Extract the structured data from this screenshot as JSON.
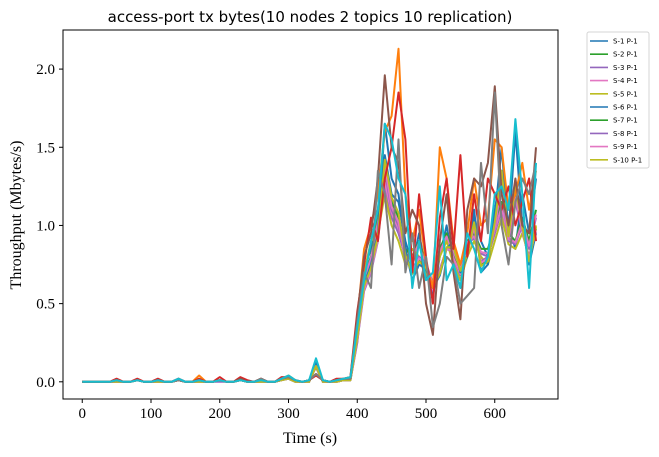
{
  "chart_data": {
    "type": "line",
    "title": "access-port tx bytes(10 nodes 2 topics 10 replication)",
    "xlabel": "Time (s)",
    "ylabel": "Throughput (Mbytes/s)",
    "xlim": [
      -28,
      692
    ],
    "ylim": [
      -0.11,
      2.25
    ],
    "xticks": [
      0,
      100,
      200,
      300,
      400,
      500,
      600
    ],
    "yticks": [
      0.0,
      0.5,
      1.0,
      1.5,
      2.0
    ],
    "ytick_labels": [
      "0.0",
      "0.5",
      "1.0",
      "1.5",
      "2.0"
    ],
    "grid": false,
    "legend_position": "outside-top-right",
    "x": [
      0,
      10,
      20,
      30,
      40,
      50,
      60,
      70,
      80,
      90,
      100,
      110,
      120,
      130,
      140,
      150,
      160,
      170,
      180,
      190,
      200,
      210,
      220,
      230,
      240,
      250,
      260,
      270,
      280,
      290,
      300,
      310,
      320,
      330,
      340,
      350,
      360,
      370,
      380,
      390,
      400,
      410,
      420,
      430,
      440,
      450,
      460,
      470,
      480,
      490,
      500,
      510,
      520,
      530,
      540,
      550,
      560,
      570,
      580,
      590,
      600,
      610,
      620,
      630,
      640,
      650,
      660
    ],
    "series": [
      {
        "name": "S-1 P-1",
        "color": "#1f77b4",
        "values": [
          0.0,
          0.0,
          0.0,
          0.0,
          0.0,
          0.01,
          0.0,
          0.0,
          0.01,
          0.0,
          0.0,
          0.01,
          0.0,
          0.0,
          0.02,
          0.0,
          0.0,
          0.01,
          0.0,
          0.0,
          0.01,
          0.0,
          0.0,
          0.02,
          0.0,
          0.0,
          0.01,
          0.0,
          0.0,
          0.02,
          0.03,
          0.01,
          0.0,
          0.01,
          0.12,
          0.01,
          0.0,
          0.01,
          0.01,
          0.02,
          0.3,
          0.72,
          0.85,
          1.1,
          1.45,
          1.2,
          1.15,
          0.9,
          0.75,
          0.95,
          0.7,
          0.55,
          0.8,
          1.0,
          0.75,
          0.6,
          0.85,
          1.05,
          0.9,
          0.8,
          1.1,
          1.35,
          1.0,
          0.85,
          1.2,
          0.95,
          1.3
        ]
      },
      {
        "name": "S-2 P-1",
        "color": "#2ca02c",
        "values": [
          0.0,
          0.0,
          0.0,
          0.0,
          0.0,
          0.0,
          0.0,
          0.0,
          0.01,
          0.0,
          0.0,
          0.0,
          0.0,
          0.0,
          0.01,
          0.0,
          0.0,
          0.0,
          0.0,
          0.0,
          0.01,
          0.0,
          0.0,
          0.01,
          0.0,
          0.0,
          0.0,
          0.0,
          0.0,
          0.01,
          0.02,
          0.0,
          0.0,
          0.0,
          0.1,
          0.0,
          0.0,
          0.0,
          0.01,
          0.01,
          0.28,
          0.68,
          0.8,
          1.05,
          1.3,
          1.1,
          1.0,
          0.85,
          0.8,
          0.9,
          0.75,
          0.6,
          0.85,
          0.95,
          0.8,
          0.7,
          0.9,
          0.95,
          0.85,
          0.85,
          1.0,
          1.15,
          0.95,
          0.9,
          1.05,
          0.9,
          1.1
        ]
      },
      {
        "name": "S-3 P-1",
        "color": "#9467bd",
        "values": [
          0.0,
          0.0,
          0.0,
          0.0,
          0.0,
          0.0,
          0.0,
          0.0,
          0.01,
          0.0,
          0.0,
          0.0,
          0.0,
          0.0,
          0.01,
          0.0,
          0.0,
          0.01,
          0.0,
          0.0,
          0.0,
          0.0,
          0.0,
          0.01,
          0.0,
          0.0,
          0.01,
          0.0,
          0.0,
          0.01,
          0.02,
          0.0,
          0.0,
          0.01,
          0.09,
          0.0,
          0.0,
          0.0,
          0.01,
          0.01,
          0.25,
          0.65,
          0.78,
          1.0,
          1.25,
          1.05,
          0.95,
          0.8,
          0.78,
          0.88,
          0.72,
          0.58,
          0.82,
          0.92,
          0.78,
          0.68,
          0.88,
          0.92,
          0.82,
          0.8,
          0.95,
          1.1,
          0.9,
          0.88,
          1.0,
          0.85,
          1.05
        ]
      },
      {
        "name": "S-4 P-1",
        "color": "#e377c2",
        "values": [
          0.0,
          0.0,
          0.0,
          0.0,
          0.0,
          0.0,
          0.0,
          0.0,
          0.01,
          0.0,
          0.0,
          0.0,
          0.0,
          0.0,
          0.01,
          0.0,
          0.0,
          0.0,
          0.0,
          0.0,
          0.01,
          0.0,
          0.0,
          0.01,
          0.0,
          0.0,
          0.0,
          0.0,
          0.0,
          0.01,
          0.02,
          0.0,
          0.0,
          0.0,
          0.1,
          0.0,
          0.0,
          0.0,
          0.01,
          0.01,
          0.27,
          0.66,
          0.79,
          1.02,
          1.28,
          1.08,
          0.98,
          0.82,
          0.79,
          0.89,
          0.73,
          0.59,
          0.83,
          0.93,
          0.79,
          0.69,
          0.89,
          0.93,
          0.83,
          0.82,
          0.97,
          1.12,
          0.92,
          0.89,
          1.02,
          0.87,
          1.07
        ]
      },
      {
        "name": "S-5 P-1",
        "color": "#bcbd22",
        "values": [
          0.0,
          0.0,
          0.0,
          0.0,
          0.0,
          0.0,
          0.0,
          0.0,
          0.01,
          0.0,
          0.0,
          0.0,
          0.0,
          0.0,
          0.01,
          0.0,
          0.0,
          0.0,
          0.0,
          0.0,
          0.01,
          0.0,
          0.0,
          0.01,
          0.0,
          0.0,
          0.0,
          0.0,
          0.0,
          0.01,
          0.02,
          0.0,
          0.0,
          0.0,
          0.1,
          0.0,
          0.0,
          0.0,
          0.01,
          0.01,
          0.28,
          0.7,
          0.9,
          0.95,
          1.2,
          1.0,
          0.9,
          0.75,
          0.85,
          0.8,
          0.7,
          0.6,
          0.8,
          0.9,
          0.75,
          0.65,
          0.8,
          0.9,
          0.8,
          0.75,
          0.9,
          1.05,
          0.88,
          0.85,
          0.95,
          0.8,
          1.0
        ]
      },
      {
        "name": "S-6 P-1",
        "color": "#1f77b4",
        "values": [
          0.0,
          0.0,
          0.0,
          0.0,
          0.0,
          0.01,
          0.0,
          0.0,
          0.01,
          0.0,
          0.0,
          0.01,
          0.0,
          0.0,
          0.01,
          0.0,
          0.0,
          0.01,
          0.0,
          0.0,
          0.01,
          0.0,
          0.0,
          0.01,
          0.0,
          0.0,
          0.01,
          0.0,
          0.0,
          0.02,
          0.03,
          0.01,
          0.0,
          0.01,
          0.11,
          0.01,
          0.0,
          0.01,
          0.01,
          0.02,
          0.32,
          0.62,
          0.75,
          0.95,
          1.65,
          1.3,
          1.2,
          0.85,
          0.65,
          0.75,
          0.72,
          0.6,
          0.68,
          0.85,
          0.9,
          0.7,
          0.8,
          1.1,
          0.7,
          0.75,
          1.05,
          1.5,
          0.95,
          1.6,
          1.0,
          0.75,
          0.95
        ]
      },
      {
        "name": "S-7 P-1",
        "color": "#2ca02c",
        "values": [
          0.0,
          0.0,
          0.0,
          0.0,
          0.0,
          0.0,
          0.0,
          0.0,
          0.01,
          0.0,
          0.0,
          0.0,
          0.0,
          0.0,
          0.01,
          0.0,
          0.0,
          0.0,
          0.0,
          0.0,
          0.01,
          0.0,
          0.0,
          0.01,
          0.0,
          0.0,
          0.0,
          0.0,
          0.0,
          0.01,
          0.02,
          0.0,
          0.0,
          0.0,
          0.1,
          0.0,
          0.0,
          0.0,
          0.01,
          0.01,
          0.29,
          0.6,
          0.72,
          0.92,
          1.4,
          1.15,
          1.05,
          0.8,
          0.7,
          0.78,
          0.74,
          0.62,
          0.7,
          0.86,
          0.85,
          0.72,
          0.82,
          1.0,
          0.75,
          0.78,
          1.0,
          1.3,
          0.92,
          1.2,
          0.98,
          0.78,
          0.98
        ]
      },
      {
        "name": "S-8 P-1",
        "color": "#9467bd",
        "values": [
          0.0,
          0.0,
          0.0,
          0.0,
          0.0,
          0.0,
          0.0,
          0.0,
          0.01,
          0.0,
          0.0,
          0.0,
          0.0,
          0.0,
          0.01,
          0.0,
          0.0,
          0.0,
          0.0,
          0.0,
          0.01,
          0.0,
          0.0,
          0.01,
          0.0,
          0.0,
          0.0,
          0.0,
          0.0,
          0.01,
          0.02,
          0.0,
          0.0,
          0.0,
          0.1,
          0.0,
          0.0,
          0.0,
          0.01,
          0.01,
          0.26,
          0.58,
          0.7,
          0.9,
          1.35,
          1.1,
          1.0,
          0.78,
          0.72,
          0.8,
          0.76,
          0.63,
          0.72,
          0.85,
          0.83,
          0.73,
          0.83,
          0.98,
          0.77,
          0.8,
          0.98,
          1.25,
          0.9,
          1.15,
          0.96,
          0.8,
          0.96
        ]
      },
      {
        "name": "S-9 P-1",
        "color": "#e377c2",
        "values": [
          0.0,
          0.0,
          0.0,
          0.0,
          0.0,
          0.0,
          0.0,
          0.0,
          0.01,
          0.0,
          0.0,
          0.0,
          0.0,
          0.0,
          0.01,
          0.0,
          0.0,
          0.0,
          0.0,
          0.0,
          0.01,
          0.0,
          0.0,
          0.01,
          0.0,
          0.0,
          0.0,
          0.0,
          0.0,
          0.01,
          0.02,
          0.0,
          0.0,
          0.0,
          0.1,
          0.0,
          0.0,
          0.0,
          0.01,
          0.01,
          0.27,
          0.59,
          0.71,
          0.91,
          1.38,
          1.12,
          1.02,
          0.79,
          0.71,
          0.79,
          0.75,
          0.62,
          0.71,
          0.85,
          0.84,
          0.72,
          0.82,
          0.99,
          0.76,
          0.79,
          0.99,
          1.28,
          0.91,
          1.18,
          0.97,
          0.79,
          0.97
        ]
      },
      {
        "name": "S-10 P-1",
        "color": "#bcbd22",
        "values": [
          0.0,
          0.0,
          0.0,
          0.0,
          0.0,
          0.0,
          0.0,
          0.0,
          0.01,
          0.0,
          0.0,
          0.0,
          0.0,
          0.0,
          0.01,
          0.0,
          0.0,
          0.0,
          0.0,
          0.0,
          0.01,
          0.0,
          0.0,
          0.01,
          0.0,
          0.0,
          0.0,
          0.0,
          0.0,
          0.01,
          0.02,
          0.0,
          0.0,
          0.0,
          0.1,
          0.0,
          0.0,
          0.0,
          0.01,
          0.01,
          0.28,
          0.61,
          0.73,
          0.93,
          1.42,
          1.18,
          1.08,
          0.81,
          0.69,
          0.77,
          0.73,
          0.61,
          0.69,
          0.86,
          0.86,
          0.71,
          0.81,
          1.02,
          0.74,
          0.77,
          1.02,
          1.35,
          0.93,
          1.25,
          0.99,
          0.77,
          0.99
        ]
      },
      {
        "color": "#ff7f0e",
        "values": [
          0.0,
          0.0,
          0.0,
          0.0,
          0.0,
          0.01,
          0.0,
          0.0,
          0.01,
          0.0,
          0.0,
          0.01,
          0.0,
          0.0,
          0.01,
          0.0,
          0.0,
          0.04,
          0.0,
          0.0,
          0.01,
          0.0,
          0.0,
          0.01,
          0.0,
          0.0,
          0.01,
          0.0,
          0.0,
          0.02,
          0.04,
          0.01,
          0.0,
          0.01,
          0.05,
          0.01,
          0.0,
          0.01,
          0.02,
          0.03,
          0.4,
          0.85,
          1.0,
          1.2,
          1.6,
          1.7,
          2.13,
          1.2,
          0.9,
          1.1,
          0.75,
          0.6,
          1.5,
          1.3,
          0.9,
          0.75,
          0.95,
          1.3,
          1.0,
          1.05,
          1.55,
          1.5,
          1.1,
          1.2,
          1.4,
          1.1,
          1.35
        ]
      },
      {
        "color": "#d62728",
        "values": [
          0.0,
          0.0,
          0.0,
          0.0,
          0.0,
          0.02,
          0.0,
          0.0,
          0.02,
          0.0,
          0.0,
          0.02,
          0.0,
          0.0,
          0.02,
          0.0,
          0.0,
          0.02,
          0.0,
          0.0,
          0.03,
          0.0,
          0.0,
          0.03,
          0.01,
          0.0,
          0.02,
          0.0,
          0.0,
          0.03,
          0.03,
          0.01,
          0.0,
          0.01,
          0.04,
          0.01,
          0.0,
          0.02,
          0.02,
          0.03,
          0.45,
          0.75,
          1.05,
          0.9,
          1.3,
          1.5,
          1.85,
          1.55,
          0.7,
          1.2,
          0.8,
          0.5,
          1.05,
          1.3,
          0.85,
          1.45,
          0.8,
          1.2,
          0.9,
          1.3,
          1.2,
          1.1,
          1.25,
          1.0,
          1.15,
          1.3,
          0.9
        ]
      },
      {
        "color": "#8c564b",
        "values": [
          0.0,
          0.0,
          0.0,
          0.0,
          0.0,
          0.01,
          0.0,
          0.0,
          0.01,
          0.0,
          0.0,
          0.01,
          0.0,
          0.0,
          0.01,
          0.0,
          0.0,
          0.01,
          0.0,
          0.0,
          0.01,
          0.0,
          0.0,
          0.02,
          0.0,
          0.0,
          0.02,
          0.0,
          0.0,
          0.02,
          0.03,
          0.01,
          0.0,
          0.01,
          0.05,
          0.01,
          0.0,
          0.01,
          0.02,
          0.02,
          0.42,
          0.8,
          0.95,
          1.3,
          1.96,
          1.5,
          1.4,
          0.95,
          1.1,
          1.0,
          0.5,
          0.3,
          0.9,
          1.2,
          0.7,
          0.4,
          1.1,
          1.3,
          1.25,
          1.4,
          1.89,
          1.2,
          1.0,
          1.3,
          1.0,
          0.95,
          1.5
        ]
      },
      {
        "color": "#7f7f7f",
        "values": [
          0.0,
          0.0,
          0.0,
          0.0,
          0.0,
          0.01,
          0.0,
          0.0,
          0.01,
          0.0,
          0.0,
          0.01,
          0.0,
          0.0,
          0.01,
          0.0,
          0.0,
          0.01,
          0.0,
          0.0,
          0.01,
          0.0,
          0.0,
          0.01,
          0.0,
          0.0,
          0.02,
          0.0,
          0.0,
          0.02,
          0.03,
          0.01,
          0.0,
          0.01,
          0.05,
          0.01,
          0.0,
          0.01,
          0.02,
          0.02,
          0.38,
          0.7,
          0.6,
          1.35,
          1.2,
          0.75,
          1.55,
          0.7,
          0.95,
          0.6,
          0.8,
          0.35,
          0.5,
          0.8,
          0.75,
          0.5,
          0.55,
          0.6,
          1.4,
          0.95,
          1.85,
          1.0,
          0.75,
          1.15,
          1.3,
          1.2,
          1.4
        ]
      },
      {
        "color": "#17becf",
        "values": [
          0.0,
          0.0,
          0.0,
          0.0,
          0.0,
          0.01,
          0.0,
          0.0,
          0.01,
          0.0,
          0.0,
          0.01,
          0.0,
          0.0,
          0.02,
          0.0,
          0.0,
          0.01,
          0.0,
          0.0,
          0.01,
          0.0,
          0.0,
          0.01,
          0.0,
          0.0,
          0.01,
          0.0,
          0.0,
          0.02,
          0.04,
          0.01,
          0.0,
          0.01,
          0.15,
          0.01,
          0.0,
          0.01,
          0.02,
          0.03,
          0.35,
          0.65,
          0.9,
          1.1,
          1.65,
          1.55,
          1.3,
          1.2,
          0.6,
          0.9,
          0.65,
          0.7,
          1.25,
          0.65,
          0.75,
          0.6,
          0.95,
          0.85,
          0.7,
          0.8,
          1.2,
          1.25,
          1.1,
          1.68,
          1.2,
          0.6,
          1.4
        ]
      }
    ]
  }
}
